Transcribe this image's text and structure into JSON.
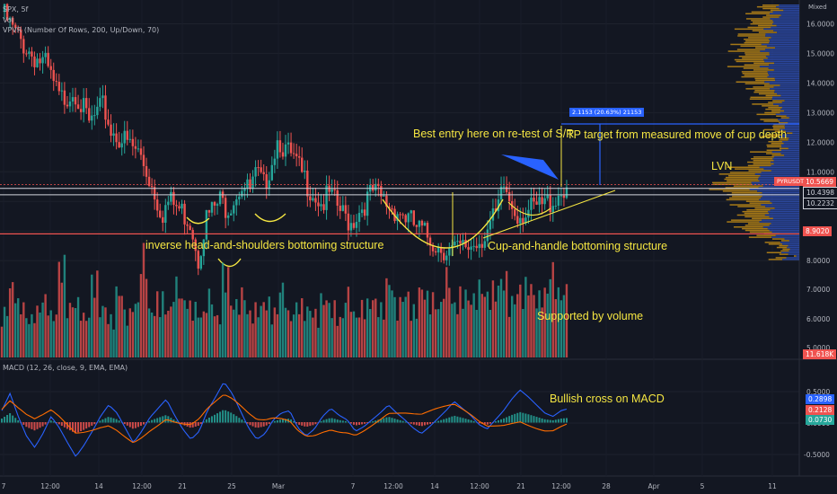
{
  "header": {
    "symbol": "SPX, 5f",
    "vol_label": "Vol",
    "vpvr_label": "VPVR (Number Of Rows, 200, Up/Down, 70)",
    "macd_label": "MACD (12, 26, close, 9, EMA, EMA)",
    "scale_mode": "Mixed"
  },
  "annotations": {
    "ihs": "inverse head-and-shoulders bottoming structure",
    "cup": "Cup-and-handle bottoming structure",
    "entry": "Best entry here on re-test of S/R",
    "tp": "TP target from measured move of cup depth",
    "lvn": "LVN",
    "volume": "Supported by volume",
    "macd": "Bullish cross on MACD",
    "measure": "2.1153 (20.63%) 21153"
  },
  "price_tags": {
    "last": "10.5669",
    "symbol_tag": "PYRUSDT",
    "level1": "10.4398",
    "level2": "10.2232",
    "support": "8.9020",
    "vol_last": "11.618K",
    "macd1": "0.2898",
    "macd2": "0.2128",
    "macd3": "0.0730"
  },
  "colors": {
    "up": "#26a69a",
    "down": "#ef5350",
    "annotation": "#f5e642",
    "support_line": "#ef5350",
    "macd_line": "#2962ff",
    "signal_line": "#ff6d00",
    "vpvr_up": "#c28b15",
    "vpvr_down": "#2f4fb3"
  },
  "chart_data": {
    "type": "candlestick",
    "price_axis": {
      "ticks": [
        "16.0000",
        "15.0000",
        "14.0000",
        "13.0000",
        "12.0000",
        "11.0000",
        "10.0000",
        "9.0000",
        "8.0000"
      ],
      "ylim": [
        7.7,
        16.5
      ]
    },
    "volume_axis": {
      "ticks": [
        "7.0000",
        "6.0000",
        "5.0000"
      ]
    },
    "macd_axis": {
      "ticks": [
        "0.5000",
        "0.0000",
        "-0.5000"
      ]
    },
    "x_ticks": [
      "7",
      "12:00",
      "14",
      "12:00",
      "21",
      "25",
      "Mar",
      "7",
      "12:00",
      "14",
      "12:00",
      "21",
      "12:00",
      "28",
      "Apr",
      "5",
      "11"
    ],
    "levels": {
      "support": 8.902,
      "resistance1": 10.4398,
      "resistance2": 10.2232,
      "last": 10.5669
    },
    "price_path": [
      [
        0,
        16.4
      ],
      [
        2,
        15.6
      ],
      [
        4,
        15.0
      ],
      [
        6,
        14.6
      ],
      [
        8,
        13.4
      ],
      [
        10,
        13.8
      ],
      [
        12,
        12.6
      ],
      [
        14,
        13.2
      ],
      [
        15,
        12.4
      ],
      [
        17,
        12.0
      ],
      [
        19,
        11.6
      ],
      [
        21,
        10.3
      ],
      [
        22,
        9.6
      ],
      [
        23,
        10.0
      ],
      [
        25,
        9.6
      ],
      [
        26,
        9.3
      ],
      [
        27,
        8.1
      ],
      [
        28,
        9.4
      ],
      [
        30,
        10.0
      ],
      [
        31,
        9.8
      ],
      [
        33,
        10.6
      ],
      [
        34,
        10.3
      ],
      [
        35,
        10.9
      ],
      [
        36,
        10.5
      ],
      [
        38,
        12.2
      ],
      [
        39,
        11.7
      ],
      [
        40,
        11.4
      ],
      [
        42,
        10.6
      ],
      [
        44,
        9.9
      ],
      [
        45,
        10.2
      ],
      [
        47,
        9.5
      ],
      [
        48,
        9.3
      ],
      [
        50,
        10.0
      ],
      [
        51,
        10.3
      ],
      [
        53,
        9.9
      ],
      [
        55,
        9.6
      ],
      [
        57,
        9.1
      ],
      [
        59,
        8.7
      ],
      [
        60,
        8.5
      ],
      [
        62,
        8.3
      ],
      [
        63,
        8.35
      ],
      [
        65,
        8.6
      ],
      [
        66,
        8.8
      ],
      [
        68,
        9.5
      ],
      [
        69,
        10.5
      ],
      [
        70,
        9.9
      ],
      [
        71,
        9.6
      ],
      [
        73,
        9.7
      ],
      [
        74,
        9.8
      ],
      [
        76,
        10.1
      ],
      [
        77,
        10.4
      ],
      [
        78,
        10.6
      ]
    ],
    "volume_values": [
      2.6,
      4.0,
      3.0,
      2.2,
      2.7,
      3.3,
      2.4,
      5.2,
      2.9,
      3.1,
      2.3,
      4.4,
      2.8,
      2.2,
      3.7,
      2.5,
      3.0,
      5.8,
      2.6,
      3.4,
      2.7,
      4.1,
      3.2,
      2.9,
      2.4,
      3.5,
      2.3,
      4.8,
      3.0,
      3.6,
      2.5,
      2.8,
      3.1,
      2.6,
      3.9,
      2.4,
      3.0,
      2.7,
      2.5,
      3.3,
      2.9,
      2.2,
      3.6,
      2.4,
      3.0,
      3.2,
      2.8,
      4.2,
      3.1,
      3.5,
      2.7,
      3.8,
      3.4,
      2.9,
      4.6,
      3.0,
      3.6,
      3.3,
      4.0,
      3.5,
      3.9,
      4.4,
      3.2,
      3.8,
      4.1,
      3.4,
      3.7,
      4.9,
      3.6,
      3.9
    ],
    "macd_values": [
      0.1,
      0.25,
      0.05,
      -0.12,
      -0.22,
      -0.1,
      0.05,
      -0.05,
      -0.18,
      -0.3,
      -0.2,
      -0.08,
      0.05,
      0.15,
      0.08,
      -0.05,
      -0.18,
      -0.08,
      0.04,
      0.12,
      0.2,
      0.06,
      -0.06,
      -0.15,
      -0.08,
      0.1,
      0.22,
      0.35,
      0.25,
      0.1,
      -0.05,
      -0.15,
      -0.1,
      0.02,
      0.08,
      0.1,
      -0.05,
      -0.12,
      -0.06,
      0.05,
      0.12,
      0.06,
      0.02,
      -0.08,
      -0.04,
      0.02,
      0.08,
      0.15,
      0.08,
      0.02,
      -0.05,
      -0.1,
      -0.04,
      0.03,
      0.1,
      0.18,
      0.12,
      0.06,
      -0.02,
      -0.06,
      0.02,
      0.1,
      0.2,
      0.28,
      0.22,
      0.15,
      0.08,
      0.05,
      0.1,
      0.12
    ]
  }
}
